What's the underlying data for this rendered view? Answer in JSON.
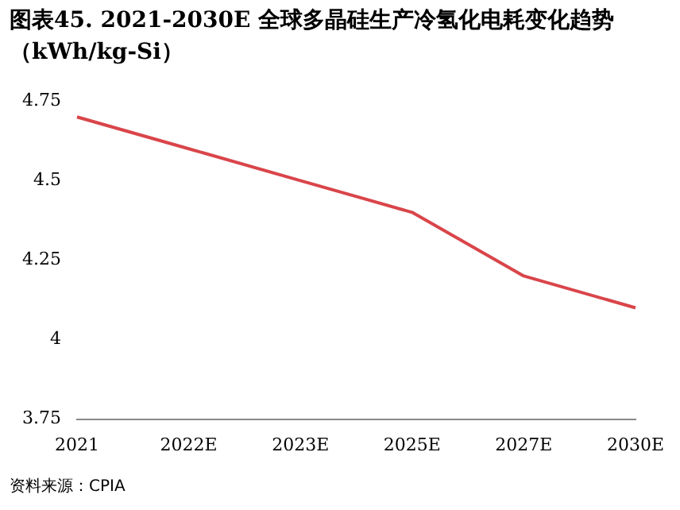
{
  "chart_data": {
    "type": "line",
    "title": "图表45. 2021-2030E 全球多晶硅生产冷氢化电耗变化趋势（kWh/kg-Si）",
    "categories": [
      "2021",
      "2022E",
      "2023E",
      "2025E",
      "2027E",
      "2030E"
    ],
    "series": [
      {
        "color": "#d9454a",
        "values": [
          4.7,
          4.6,
          4.5,
          4.4,
          4.2,
          4.1
        ]
      }
    ],
    "ylim": [
      3.75,
      4.75
    ],
    "yticks": [
      3.75,
      4,
      4.25,
      4.5,
      4.75
    ],
    "grid": false,
    "legend": false,
    "marker": "none",
    "line_style": "solid",
    "annotations": [
      "资料来源：CPIA"
    ]
  }
}
